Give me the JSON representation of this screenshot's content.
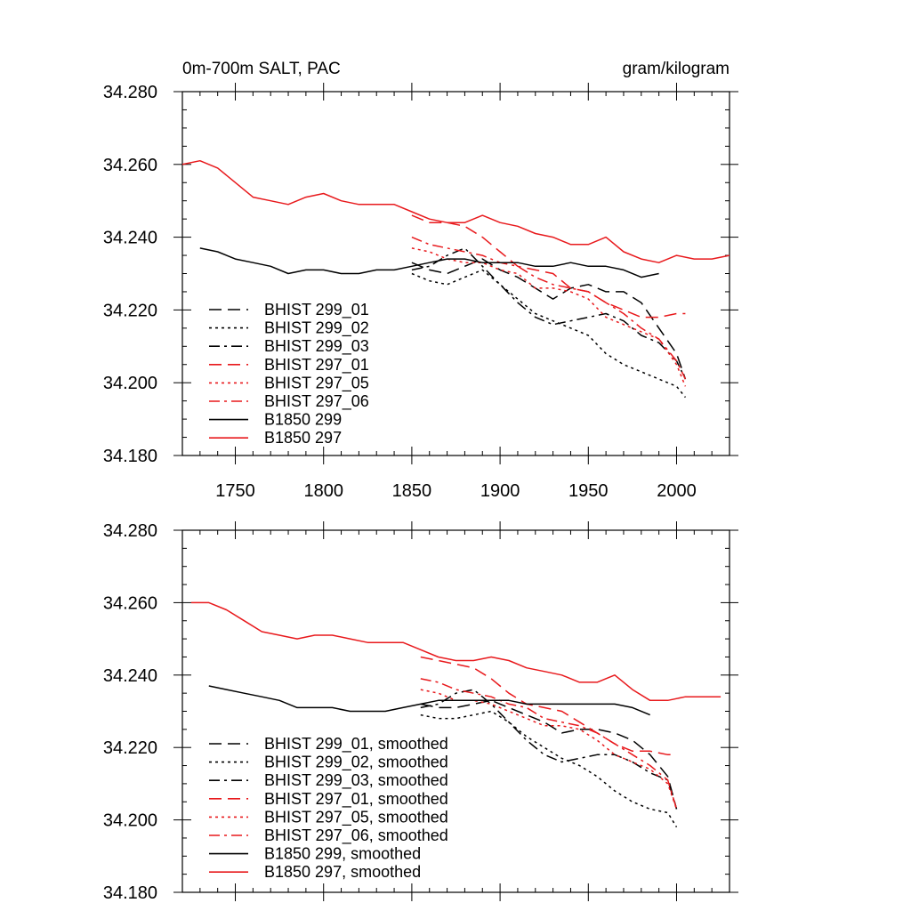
{
  "chart_data": [
    {
      "type": "line",
      "title": "0m-700m SALT, PAC",
      "units": "gram/kilogram",
      "xlim": [
        1720,
        2030
      ],
      "ylim": [
        34.18,
        34.28
      ],
      "x_ticks": [
        "1750",
        "1800",
        "1850",
        "1900",
        "1950",
        "2000"
      ],
      "y_ticks": [
        "34.180",
        "34.200",
        "34.220",
        "34.240",
        "34.260",
        "34.280"
      ],
      "legend_location": "lower-left",
      "series": [
        {
          "name": "BHIST 299_01",
          "color": "#000000",
          "dash": "dashed",
          "x": [
            1850,
            1860,
            1870,
            1880,
            1890,
            1900,
            1910,
            1920,
            1930,
            1940,
            1950,
            1960,
            1970,
            1980,
            1990,
            2000,
            2005
          ],
          "y": [
            34.233,
            34.231,
            34.23,
            34.232,
            34.234,
            34.231,
            34.229,
            34.226,
            34.223,
            34.226,
            34.227,
            34.225,
            34.225,
            34.222,
            34.215,
            34.208,
            34.201
          ]
        },
        {
          "name": "BHIST 299_02",
          "color": "#000000",
          "dash": "dotted",
          "x": [
            1850,
            1860,
            1870,
            1880,
            1890,
            1900,
            1910,
            1920,
            1930,
            1940,
            1950,
            1960,
            1970,
            1980,
            1990,
            2000,
            2005
          ],
          "y": [
            34.23,
            34.228,
            34.227,
            34.229,
            34.231,
            34.227,
            34.223,
            34.219,
            34.217,
            34.215,
            34.213,
            34.208,
            34.205,
            34.203,
            34.201,
            34.199,
            34.196
          ]
        },
        {
          "name": "BHIST 299_03",
          "color": "#000000",
          "dash": "dashdot",
          "x": [
            1850,
            1860,
            1870,
            1880,
            1890,
            1900,
            1910,
            1920,
            1930,
            1940,
            1950,
            1960,
            1970,
            1980,
            1990,
            2000,
            2005
          ],
          "y": [
            34.231,
            34.232,
            34.235,
            34.237,
            34.232,
            34.227,
            34.222,
            34.218,
            34.216,
            34.217,
            34.218,
            34.219,
            34.217,
            34.213,
            34.211,
            34.206,
            34.201
          ]
        },
        {
          "name": "BHIST 297_01",
          "color": "#e8191c",
          "dash": "dashed",
          "x": [
            1850,
            1860,
            1870,
            1880,
            1890,
            1900,
            1910,
            1920,
            1930,
            1940,
            1950,
            1960,
            1970,
            1980,
            1990,
            2000,
            2005
          ],
          "y": [
            34.246,
            34.244,
            34.244,
            34.243,
            34.24,
            34.236,
            34.232,
            34.231,
            34.23,
            34.226,
            34.225,
            34.222,
            34.22,
            34.218,
            34.218,
            34.219,
            34.219
          ]
        },
        {
          "name": "BHIST 297_05",
          "color": "#e8191c",
          "dash": "dotted",
          "x": [
            1850,
            1860,
            1870,
            1880,
            1890,
            1900,
            1910,
            1920,
            1930,
            1940,
            1950,
            1960,
            1970,
            1980,
            1990,
            2000,
            2005
          ],
          "y": [
            34.237,
            34.236,
            34.234,
            34.233,
            34.233,
            34.231,
            34.23,
            34.226,
            34.226,
            34.225,
            34.223,
            34.218,
            34.216,
            34.214,
            34.212,
            34.205,
            34.199
          ]
        },
        {
          "name": "BHIST 297_06",
          "color": "#e8191c",
          "dash": "dashdot",
          "x": [
            1850,
            1860,
            1870,
            1880,
            1890,
            1900,
            1910,
            1920,
            1930,
            1940,
            1950,
            1960,
            1970,
            1980,
            1990,
            2000,
            2005
          ],
          "y": [
            34.24,
            34.238,
            34.237,
            34.236,
            34.235,
            34.233,
            34.232,
            34.229,
            34.227,
            34.226,
            34.225,
            34.222,
            34.219,
            34.215,
            34.212,
            34.206,
            34.201
          ]
        },
        {
          "name": "B1850 299",
          "color": "#000000",
          "dash": "solid",
          "x": [
            1730,
            1740,
            1750,
            1760,
            1770,
            1780,
            1790,
            1800,
            1810,
            1820,
            1830,
            1840,
            1850,
            1860,
            1870,
            1880,
            1890,
            1900,
            1910,
            1920,
            1930,
            1940,
            1950,
            1960,
            1970,
            1980,
            1990
          ],
          "y": [
            34.237,
            34.236,
            34.234,
            34.233,
            34.232,
            34.23,
            34.231,
            34.231,
            34.23,
            34.23,
            34.231,
            34.231,
            34.232,
            34.233,
            34.234,
            34.234,
            34.233,
            34.233,
            34.233,
            34.232,
            34.232,
            34.233,
            34.232,
            34.232,
            34.231,
            34.229,
            34.23
          ]
        },
        {
          "name": "B1850 297",
          "color": "#e8191c",
          "dash": "solid",
          "x": [
            1720,
            1730,
            1740,
            1750,
            1760,
            1770,
            1780,
            1790,
            1800,
            1810,
            1820,
            1830,
            1840,
            1850,
            1860,
            1870,
            1880,
            1890,
            1900,
            1910,
            1920,
            1930,
            1940,
            1950,
            1960,
            1970,
            1980,
            1990,
            2000,
            2010,
            2020,
            2030
          ],
          "y": [
            34.26,
            34.261,
            34.259,
            34.255,
            34.251,
            34.25,
            34.249,
            34.251,
            34.252,
            34.25,
            34.249,
            34.249,
            34.249,
            34.247,
            34.245,
            34.244,
            34.244,
            34.246,
            34.244,
            34.243,
            34.241,
            34.24,
            34.238,
            34.238,
            34.24,
            34.236,
            34.234,
            34.233,
            34.235,
            34.234,
            34.234,
            34.235
          ]
        }
      ]
    },
    {
      "type": "line",
      "title": "",
      "units": "",
      "xlim": [
        1720,
        2030
      ],
      "ylim": [
        34.18,
        34.28
      ],
      "x_ticks": [],
      "y_ticks": [
        "34.180",
        "34.200",
        "34.220",
        "34.240",
        "34.260",
        "34.280"
      ],
      "legend_location": "lower-left",
      "series": [
        {
          "name": "BHIST 299_01, smoothed",
          "color": "#000000",
          "dash": "dashed",
          "x": [
            1855,
            1865,
            1875,
            1885,
            1895,
            1905,
            1915,
            1925,
            1935,
            1945,
            1955,
            1965,
            1975,
            1985,
            1995,
            2000
          ],
          "y": [
            34.232,
            34.231,
            34.231,
            34.232,
            34.233,
            34.231,
            34.229,
            34.227,
            34.224,
            34.225,
            34.225,
            34.224,
            34.222,
            34.218,
            34.212,
            34.203
          ]
        },
        {
          "name": "BHIST 299_02, smoothed",
          "color": "#000000",
          "dash": "dotted",
          "x": [
            1855,
            1865,
            1875,
            1885,
            1895,
            1905,
            1915,
            1925,
            1935,
            1945,
            1955,
            1965,
            1975,
            1985,
            1995,
            2000
          ],
          "y": [
            34.229,
            34.228,
            34.228,
            34.229,
            34.23,
            34.227,
            34.223,
            34.22,
            34.217,
            34.215,
            34.212,
            34.208,
            34.205,
            34.203,
            34.202,
            34.198
          ]
        },
        {
          "name": "BHIST 299_03, smoothed",
          "color": "#000000",
          "dash": "dashdot",
          "x": [
            1855,
            1865,
            1875,
            1885,
            1895,
            1905,
            1915,
            1925,
            1935,
            1945,
            1955,
            1965,
            1975,
            1985,
            1995,
            2000
          ],
          "y": [
            34.231,
            34.232,
            34.235,
            34.236,
            34.232,
            34.227,
            34.222,
            34.218,
            34.216,
            34.217,
            34.218,
            34.218,
            34.216,
            34.213,
            34.211,
            34.203
          ]
        },
        {
          "name": "BHIST 297_01, smoothed",
          "color": "#e8191c",
          "dash": "dashed",
          "x": [
            1855,
            1865,
            1875,
            1885,
            1895,
            1905,
            1915,
            1925,
            1935,
            1945,
            1955,
            1965,
            1975,
            1985,
            1995,
            2000
          ],
          "y": [
            34.245,
            34.244,
            34.243,
            34.242,
            34.239,
            34.235,
            34.232,
            34.231,
            34.23,
            34.227,
            34.224,
            34.221,
            34.219,
            34.219,
            34.218,
            34.218
          ]
        },
        {
          "name": "BHIST 297_05, smoothed",
          "color": "#e8191c",
          "dash": "dotted",
          "x": [
            1855,
            1865,
            1875,
            1885,
            1895,
            1905,
            1915,
            1925,
            1935,
            1945,
            1955,
            1965,
            1975,
            1985,
            1995,
            2000
          ],
          "y": [
            34.236,
            34.235,
            34.233,
            34.233,
            34.232,
            34.23,
            34.228,
            34.226,
            34.226,
            34.225,
            34.222,
            34.218,
            34.216,
            34.214,
            34.21,
            34.203
          ]
        },
        {
          "name": "BHIST 297_06, smoothed",
          "color": "#e8191c",
          "dash": "dashdot",
          "x": [
            1855,
            1865,
            1875,
            1885,
            1895,
            1905,
            1915,
            1925,
            1935,
            1945,
            1955,
            1965,
            1975,
            1985,
            1995,
            2000
          ],
          "y": [
            34.239,
            34.238,
            34.236,
            34.235,
            34.234,
            34.232,
            34.231,
            34.228,
            34.227,
            34.226,
            34.224,
            34.221,
            34.218,
            34.215,
            34.211,
            34.203
          ]
        },
        {
          "name": "B1850 299, smoothed",
          "color": "#000000",
          "dash": "solid",
          "x": [
            1735,
            1745,
            1755,
            1765,
            1775,
            1785,
            1795,
            1805,
            1815,
            1825,
            1835,
            1845,
            1855,
            1865,
            1875,
            1885,
            1895,
            1905,
            1915,
            1925,
            1935,
            1945,
            1955,
            1965,
            1975,
            1985
          ],
          "y": [
            34.237,
            34.236,
            34.235,
            34.234,
            34.233,
            34.231,
            34.231,
            34.231,
            34.23,
            34.23,
            34.23,
            34.231,
            34.232,
            34.233,
            34.233,
            34.233,
            34.233,
            34.233,
            34.232,
            34.232,
            34.232,
            34.232,
            34.232,
            34.232,
            34.231,
            34.229
          ]
        },
        {
          "name": "B1850 297, smoothed",
          "color": "#e8191c",
          "dash": "solid",
          "x": [
            1725,
            1735,
            1745,
            1755,
            1765,
            1775,
            1785,
            1795,
            1805,
            1815,
            1825,
            1835,
            1845,
            1855,
            1865,
            1875,
            1885,
            1895,
            1905,
            1915,
            1925,
            1935,
            1945,
            1955,
            1965,
            1975,
            1985,
            1995,
            2005,
            2015,
            2025
          ],
          "y": [
            34.26,
            34.26,
            34.258,
            34.255,
            34.252,
            34.251,
            34.25,
            34.251,
            34.251,
            34.25,
            34.249,
            34.249,
            34.249,
            34.247,
            34.245,
            34.244,
            34.244,
            34.245,
            34.244,
            34.242,
            34.241,
            34.24,
            34.238,
            34.238,
            34.24,
            34.236,
            34.233,
            34.233,
            34.234,
            34.234,
            34.234
          ]
        }
      ]
    }
  ]
}
